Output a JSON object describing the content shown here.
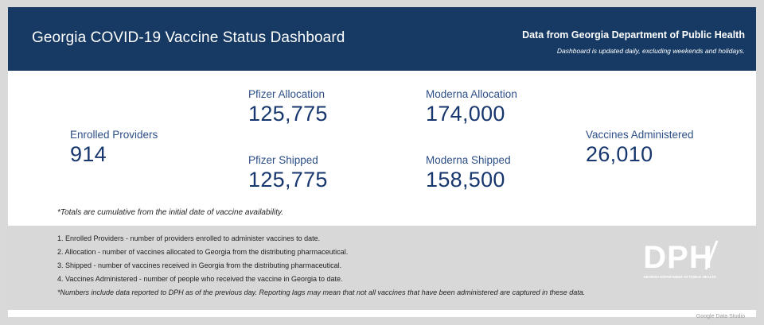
{
  "header": {
    "title": "Georgia COVID-19 Vaccine Status Dashboard",
    "source": "Data from Georgia Department of Public Health",
    "updated": "Dashboard is updated daily, excluding weekends and holidays."
  },
  "metrics": {
    "enrolled_providers": {
      "label": "Enrolled Providers",
      "value": "914"
    },
    "pfizer_allocation": {
      "label": "Pfizer Allocation",
      "value": "125,775"
    },
    "pfizer_shipped": {
      "label": "Pfizer Shipped",
      "value": "125,775"
    },
    "moderna_allocation": {
      "label": "Moderna Allocation",
      "value": "174,000"
    },
    "moderna_shipped": {
      "label": "Moderna Shipped",
      "value": "158,500"
    },
    "vaccines_administered": {
      "label": "Vaccines Administered",
      "value": "26,010"
    }
  },
  "footnote": "*Totals are cumulative from the initial date of vaccine availability.",
  "notes": [
    "1. Enrolled Providers - number of providers enrolled to administer vaccines to date.",
    "2. Allocation - number of vaccines allocated to Georgia from the distributing pharmaceutical.",
    "3. Shipped - number of vaccines received in Georgia from the distributing pharmaceutical.",
    "4. Vaccines Administered - number of people who received the vaccine in Georgia to date.",
    "*Numbers include data reported to DPH as of the previous day. Reporting lags may mean that not all vaccines that have been administered are captured in these data."
  ],
  "logo": {
    "letters": "DPH",
    "caption": "GEORGIA DEPARTMENT OF PUBLIC HEALTH",
    "icon": "dph-logo-icon"
  },
  "watermark": "Google Data Studio",
  "colors": {
    "header_bg": "#163a63",
    "metric_label": "#2d4f87",
    "metric_value": "#17376e",
    "notes_bg": "#d8d8d8"
  }
}
